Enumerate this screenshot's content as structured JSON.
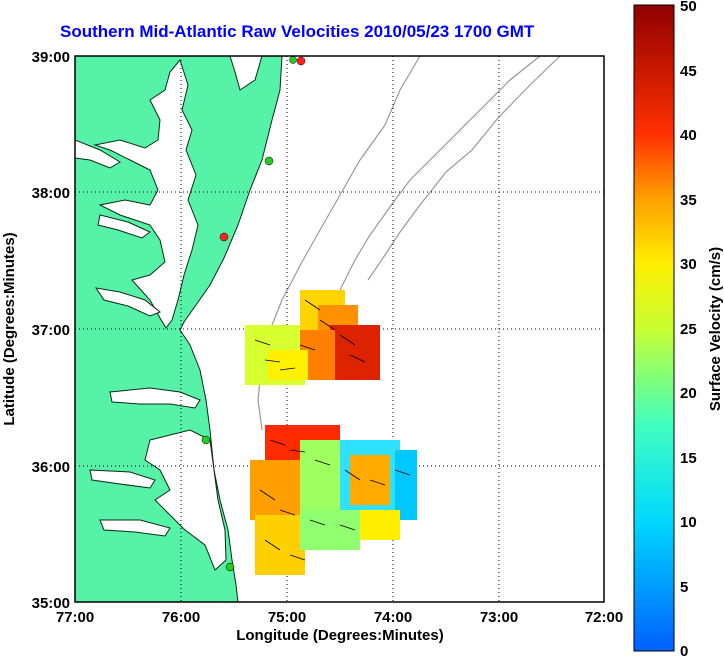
{
  "title": "Southern Mid-Atlantic Raw Velocities 2010/05/23 1700 GMT",
  "x_axis": {
    "label": "Longitude (Degrees:Minutes)",
    "ticks": [
      "77:00",
      "76:00",
      "75:00",
      "74:00",
      "73:00",
      "72:00"
    ]
  },
  "y_axis": {
    "label": "Latitude (Degrees:Minutes)",
    "ticks": [
      "39:00",
      "38:00",
      "37:00",
      "36:00",
      "35:00"
    ]
  },
  "colorbar": {
    "label": "Surface Velocity (cm/s)",
    "ticks": [
      "50",
      "45",
      "40",
      "35",
      "30",
      "25",
      "20",
      "15",
      "10",
      "5",
      "0"
    ],
    "min": 0,
    "max": 50
  },
  "colors": {
    "land": "#55f2a8",
    "title": "#0000ff",
    "station_green": "#22cc22",
    "station_red": "#ff2222"
  },
  "chart_data": {
    "type": "heatmap",
    "title": "Southern Mid-Atlantic Raw Velocities 2010/05/23 1700 GMT",
    "xlabel": "Longitude (Degrees:Minutes)",
    "ylabel": "Latitude (Degrees:Minutes)",
    "xlim": [
      -77,
      -72
    ],
    "ylim": [
      35,
      39
    ],
    "grid": true,
    "colorbar_range": [
      0,
      50
    ]
  }
}
